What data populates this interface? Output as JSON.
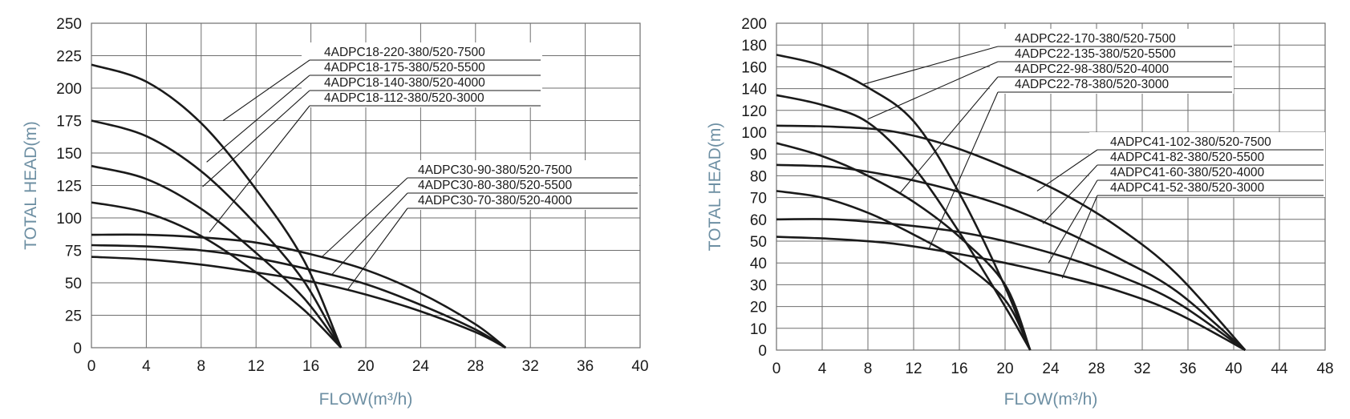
{
  "chart_data": [
    {
      "type": "line",
      "xlabel": "FLOW(m³/h)",
      "ylabel": "TOTAL HEAD(m)",
      "xlim": [
        0,
        40
      ],
      "ylim": [
        0,
        250
      ],
      "xticks": [
        "0",
        "4",
        "8",
        "12",
        "16",
        "20",
        "24",
        "28",
        "32",
        "36",
        "40"
      ],
      "yticks": [
        "0",
        "25",
        "50",
        "75",
        "100",
        "125",
        "150",
        "175",
        "200",
        "225",
        "250"
      ],
      "grid": true,
      "series": [
        {
          "name": "4ADPC18-220-380/520-7500",
          "x": [
            0,
            4,
            8,
            12,
            15.5,
            18.2
          ],
          "values": [
            218,
            205,
            173,
            122,
            67,
            0
          ]
        },
        {
          "name": "4ADPC18-175-380/520-5500",
          "x": [
            0,
            4,
            8,
            12,
            15.5,
            18.2
          ],
          "values": [
            175,
            163,
            136,
            95,
            51,
            0
          ]
        },
        {
          "name": "4ADPC18-140-380/520-4000",
          "x": [
            0,
            4,
            8,
            12,
            15.5,
            18.2
          ],
          "values": [
            140,
            130,
            107,
            73,
            38,
            0
          ]
        },
        {
          "name": "4ADPC18-112-380/520-3000",
          "x": [
            0,
            4,
            8,
            12,
            15.5,
            18.2
          ],
          "values": [
            112,
            104,
            86,
            58,
            29,
            0
          ]
        },
        {
          "name": "4ADPC30-90-380/520-7500",
          "x": [
            0,
            4,
            8,
            12,
            16,
            20,
            24,
            28,
            30.2
          ],
          "values": [
            87,
            87,
            85,
            81,
            72,
            60,
            42,
            18,
            0
          ]
        },
        {
          "name": "4ADPC30-80-380/520-5500",
          "x": [
            0,
            4,
            8,
            12,
            16,
            20,
            24,
            28,
            30.2
          ],
          "values": [
            79,
            78,
            75,
            69,
            60,
            49,
            33,
            14,
            0
          ]
        },
        {
          "name": "4ADPC30-70-380/520-4000",
          "x": [
            0,
            4,
            8,
            12,
            16,
            20,
            24,
            28,
            30.2
          ],
          "values": [
            70,
            68,
            64,
            58,
            51,
            41,
            28,
            12,
            0
          ]
        }
      ],
      "legend_groups": [
        {
          "labels": [
            "4ADPC18-220-380/520-7500",
            "4ADPC18-175-380/520-5500",
            "4ADPC18-140-380/520-4000",
            "4ADPC18-112-380/520-3000"
          ],
          "leader_points": [
            [
              9.6,
              175
            ],
            [
              8.4,
              143
            ],
            [
              8.1,
              124
            ],
            [
              8.6,
              89
            ]
          ]
        },
        {
          "labels": [
            "4ADPC30-90-380/520-7500",
            "4ADPC30-80-380/520-5500",
            "4ADPC30-70-380/520-4000"
          ],
          "leader_points": [
            [
              16.8,
              70
            ],
            [
              17.5,
              56
            ],
            [
              18.7,
              45
            ]
          ]
        }
      ]
    },
    {
      "type": "line",
      "xlabel": "FLOW(m³/h)",
      "ylabel": "TOTAL HEAD(m)",
      "xlim": [
        0,
        48
      ],
      "ylim": [
        0,
        200
      ],
      "xticks": [
        "0",
        "4",
        "8",
        "12",
        "16",
        "20",
        "24",
        "28",
        "32",
        "36",
        "40",
        "44",
        "48"
      ],
      "yticks": [
        "0",
        "10",
        "20",
        "30",
        "40",
        "50",
        "60",
        "70",
        "80",
        "90",
        "100",
        "120",
        "140",
        "160",
        "180",
        "200"
      ],
      "ytick_values": [
        0,
        10,
        20,
        30,
        40,
        50,
        60,
        70,
        80,
        90,
        100,
        120,
        140,
        160,
        180,
        200
      ],
      "grid": true,
      "series": [
        {
          "name": "4ADPC22-170-380/520-7500",
          "x": [
            0,
            4,
            8,
            12,
            16,
            20,
            22.2
          ],
          "values": [
            171,
            161,
            141,
            110,
            72,
            29,
            0
          ]
        },
        {
          "name": "4ADPC22-135-380/520-5500",
          "x": [
            0,
            4,
            8,
            12,
            16,
            20,
            22.2
          ],
          "values": [
            134,
            125,
            109,
            84,
            54,
            20,
            0
          ]
        },
        {
          "name": "4ADPC22-98-380/520-4000",
          "x": [
            0,
            4,
            8,
            12,
            16,
            20,
            22.2
          ],
          "values": [
            95,
            89,
            80,
            68,
            52,
            30,
            0
          ]
        },
        {
          "name": "4ADPC22-78-380/520-3000",
          "x": [
            0,
            4,
            8,
            12,
            16,
            20,
            22.2
          ],
          "values": [
            73,
            70,
            63,
            53,
            41,
            23,
            0
          ]
        },
        {
          "name": "4ADPC41-102-380/520-7500",
          "x": [
            0,
            5,
            10,
            15,
            20,
            25,
            30,
            35,
            41
          ],
          "values": [
            106,
            105,
            101,
            94,
            84,
            72,
            56,
            35,
            0
          ]
        },
        {
          "name": "4ADPC41-82-380/520-5500",
          "x": [
            0,
            5,
            10,
            15,
            20,
            25,
            30,
            35,
            41
          ],
          "values": [
            85,
            84,
            80,
            74,
            66,
            55,
            42,
            27,
            0
          ]
        },
        {
          "name": "4ADPC41-60-380/520-4000",
          "x": [
            0,
            5,
            10,
            15,
            20,
            25,
            30,
            35,
            41
          ],
          "values": [
            60,
            60,
            58,
            55,
            50,
            43,
            34,
            22,
            0
          ]
        },
        {
          "name": "4ADPC41-52-380/520-3000",
          "x": [
            0,
            5,
            10,
            15,
            20,
            25,
            30,
            35,
            41
          ],
          "values": [
            52,
            51,
            49,
            45,
            40,
            34,
            27,
            17,
            0
          ]
        }
      ],
      "legend_groups": [
        {
          "labels": [
            "4ADPC22-170-380/520-7500",
            "4ADPC22-135-380/520-5500",
            "4ADPC22-98-380/520-4000",
            "4ADPC22-78-380/520-3000"
          ],
          "leader_points": [
            [
              7.6,
              144
            ],
            [
              8,
              112
            ],
            [
              10.8,
              72
            ],
            [
              13.3,
              46
            ]
          ]
        },
        {
          "labels": [
            "4ADPC41-102-380/520-7500",
            "4ADPC41-82-380/520-5500",
            "4ADPC41-60-380/520-4000",
            "4ADPC41-52-380/520-3000"
          ],
          "leader_points": [
            [
              22.8,
              73
            ],
            [
              23.3,
              58
            ],
            [
              23.8,
              40
            ],
            [
              25,
              33
            ]
          ]
        }
      ]
    }
  ]
}
